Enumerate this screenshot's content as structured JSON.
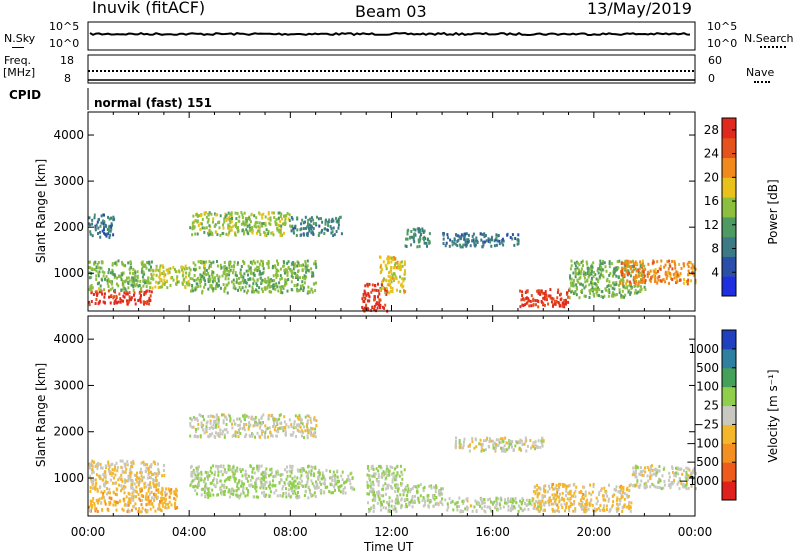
{
  "header": {
    "station": "Inuvik (fitACF)",
    "beam": "Beam 03",
    "date": "13/May/2019"
  },
  "panels": {
    "nsky_label": "N.Sky",
    "nsky_ticks": [
      "10^5",
      "10^0"
    ],
    "nsearch_label": "N.Search",
    "nsearch_ticks": [
      "10^5",
      "10^0"
    ],
    "freq_label": "Freq.",
    "freq_unit": "[MHz]",
    "freq_ticks": [
      "18",
      "8"
    ],
    "nave_label": "Nave",
    "nave_ticks": [
      "60",
      "0"
    ],
    "cpid_label": "CPID",
    "cpid_value": "normal (fast) 151"
  },
  "colors": {
    "power": [
      "#1f2fe0",
      "#2b4ea8",
      "#3c7a86",
      "#4f9a63",
      "#8dbf3e",
      "#e8c21a",
      "#f08a1c",
      "#e5521c",
      "#e02a1e"
    ],
    "velocity": [
      "#e0201c",
      "#ef5b1c",
      "#f39021",
      "#f4b62a",
      "#c8c8c0",
      "#8fcf4c",
      "#45a05a",
      "#2f7fa0",
      "#2040c0"
    ]
  },
  "chart_data": [
    {
      "type": "heatmap",
      "name": "power",
      "ylabel": "Slant Range [km]",
      "yticks": [
        "1000",
        "2000",
        "3000",
        "4000"
      ],
      "ylim": [
        180,
        4500
      ],
      "xticks": [
        "00:00",
        "04:00",
        "08:00",
        "12:00",
        "16:00",
        "20:00",
        "00:00"
      ],
      "xlim": [
        0,
        24
      ],
      "colorbar": {
        "label": "Power [dB]",
        "ticks": [
          "28",
          "24",
          "20",
          "16",
          "12",
          "8",
          "4"
        ],
        "range": [
          0,
          30
        ]
      },
      "regions": [
        {
          "t": [
            0.0,
            2.5
          ],
          "r": [
            350,
            650
          ],
          "level": 28
        },
        {
          "t": [
            0.0,
            2.5
          ],
          "r": [
            650,
            1300
          ],
          "level": 14
        },
        {
          "t": [
            0.0,
            1.0
          ],
          "r": [
            1800,
            2300
          ],
          "level": 8
        },
        {
          "t": [
            2.5,
            4.0
          ],
          "r": [
            700,
            1200
          ],
          "level": 16
        },
        {
          "t": [
            4.0,
            9.0
          ],
          "r": [
            600,
            1300
          ],
          "level": 14
        },
        {
          "t": [
            4.0,
            8.0
          ],
          "r": [
            1850,
            2350
          ],
          "level": 15
        },
        {
          "t": [
            8.0,
            10.0
          ],
          "r": [
            1850,
            2250
          ],
          "level": 9
        },
        {
          "t": [
            10.8,
            11.8
          ],
          "r": [
            200,
            800
          ],
          "level": 28
        },
        {
          "t": [
            11.5,
            12.5
          ],
          "r": [
            600,
            1400
          ],
          "level": 18
        },
        {
          "t": [
            12.5,
            13.5
          ],
          "r": [
            1600,
            2000
          ],
          "level": 10
        },
        {
          "t": [
            14.0,
            17.0
          ],
          "r": [
            1600,
            1900
          ],
          "level": 8
        },
        {
          "t": [
            17.0,
            19.0
          ],
          "r": [
            300,
            700
          ],
          "level": 27
        },
        {
          "t": [
            19.0,
            22.0
          ],
          "r": [
            500,
            1300
          ],
          "level": 14
        },
        {
          "t": [
            21.0,
            24.0
          ],
          "r": [
            800,
            1300
          ],
          "level": 22
        }
      ]
    },
    {
      "type": "heatmap",
      "name": "velocity",
      "ylabel": "Slant Range [km]",
      "yticks": [
        "1000",
        "2000",
        "3000",
        "4000"
      ],
      "ylim": [
        180,
        4500
      ],
      "xticks": [
        "00:00",
        "04:00",
        "08:00",
        "12:00",
        "16:00",
        "20:00",
        "00:00"
      ],
      "xlim": [
        0,
        24
      ],
      "xlabel": "Time UT",
      "colorbar": {
        "label": "Velocity [m s⁻¹]",
        "ticks": [
          "1000",
          "500",
          "100",
          "25",
          "−25",
          "−100",
          "−500",
          "−1000"
        ],
        "range": [
          -1250,
          1250
        ]
      },
      "regions": [
        {
          "t": [
            0.0,
            3.5
          ],
          "r": [
            300,
            800
          ],
          "level": -300
        },
        {
          "t": [
            0.0,
            3.0
          ],
          "r": [
            800,
            1400
          ],
          "level": -100
        },
        {
          "t": [
            4.0,
            9.0
          ],
          "r": [
            1900,
            2400
          ],
          "level": 0
        },
        {
          "t": [
            4.0,
            9.0
          ],
          "r": [
            600,
            1300
          ],
          "level": 150
        },
        {
          "t": [
            9.0,
            10.5
          ],
          "r": [
            700,
            1200
          ],
          "level": 150
        },
        {
          "t": [
            11.0,
            12.5
          ],
          "r": [
            300,
            1300
          ],
          "level": 150
        },
        {
          "t": [
            12.5,
            14.0
          ],
          "r": [
            400,
            900
          ],
          "level": 80
        },
        {
          "t": [
            14.5,
            18.0
          ],
          "r": [
            1600,
            1900
          ],
          "level": 0
        },
        {
          "t": [
            14.0,
            18.0
          ],
          "r": [
            300,
            600
          ],
          "level": 80
        },
        {
          "t": [
            17.5,
            21.5
          ],
          "r": [
            300,
            900
          ],
          "level": -200
        },
        {
          "t": [
            21.5,
            24.0
          ],
          "r": [
            800,
            1300
          ],
          "level": 0
        }
      ]
    }
  ]
}
